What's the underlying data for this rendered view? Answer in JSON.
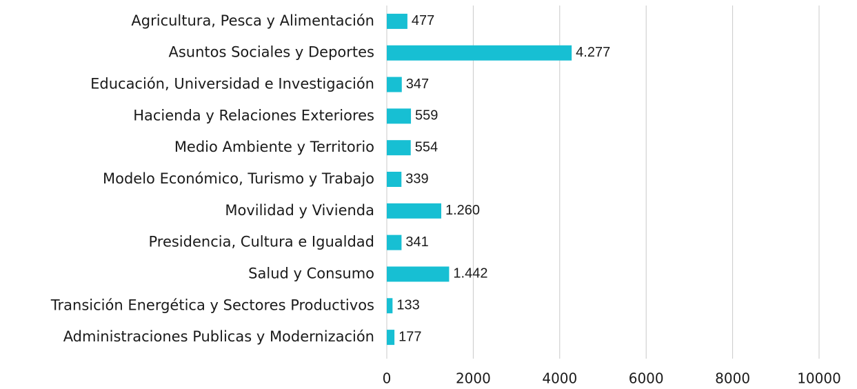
{
  "chart_data": {
    "type": "bar",
    "orientation": "horizontal",
    "categories": [
      "Agricultura, Pesca y Alimentación",
      "Asuntos Sociales y Deportes",
      "Educación, Universidad e Investigación",
      "Hacienda y Relaciones Exteriores",
      "Medio Ambiente y Territorio",
      "Modelo Económico, Turismo y Trabajo",
      "Movilidad y Vivienda",
      "Presidencia, Cultura e Igualdad",
      "Salud y Consumo",
      "Transición Energética y Sectores Productivos",
      "Administraciones Publicas y Modernización"
    ],
    "values": [
      477,
      4277,
      347,
      559,
      554,
      339,
      1260,
      341,
      1442,
      133,
      177
    ],
    "value_labels": [
      "477",
      "4.277",
      "347",
      "559",
      "554",
      "339",
      "1.260",
      "341",
      "1.442",
      "133",
      "177"
    ],
    "color": "#17bfd3",
    "xlim": [
      0,
      10000
    ],
    "xticks": [
      0,
      2000,
      4000,
      6000,
      8000,
      10000
    ],
    "grid": true
  }
}
